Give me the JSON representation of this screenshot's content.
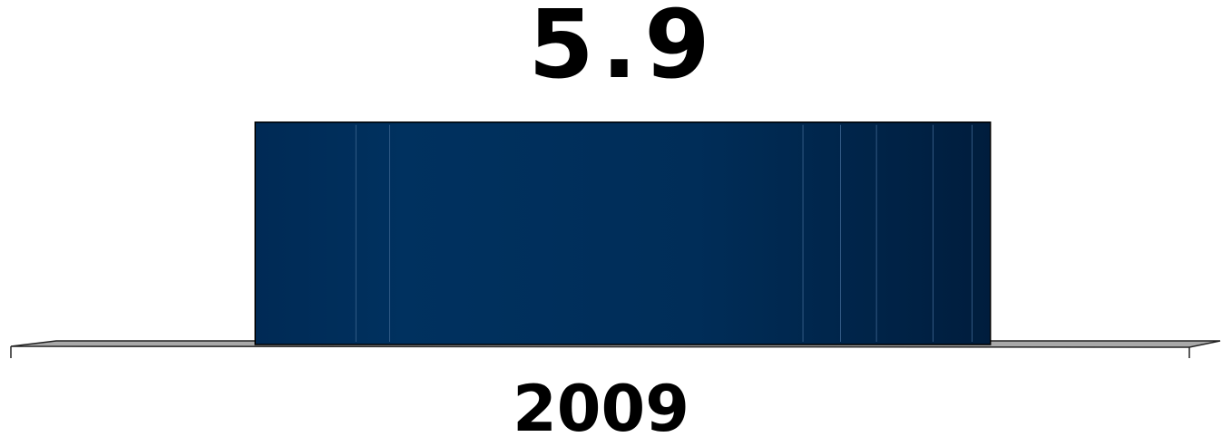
{
  "chart_data": {
    "type": "bar",
    "categories": [
      "2009"
    ],
    "values": [
      5.9
    ],
    "value_labels": [
      "5.9"
    ],
    "color": "#002f5f",
    "ylim": [
      0,
      8.3
    ]
  }
}
